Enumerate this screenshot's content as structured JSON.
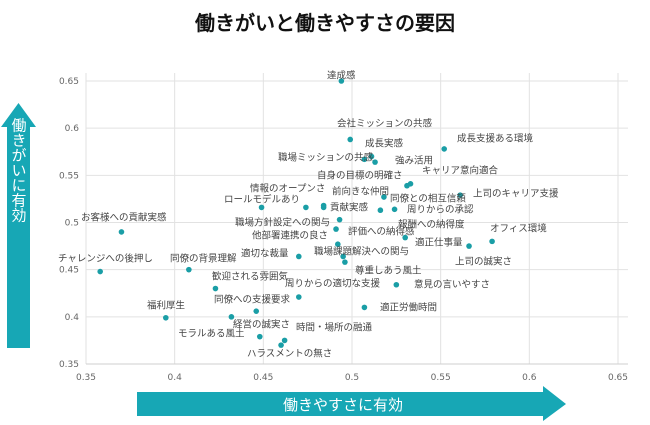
{
  "chart_data": {
    "type": "scatter",
    "title": "働きがいと働きやすさの要因",
    "xlabel": "働きやすさに有効",
    "ylabel": "働きがいに有効",
    "xlim": [
      0.35,
      0.65
    ],
    "ylim": [
      0.35,
      0.65
    ],
    "xticks": [
      "0.35",
      "0.4",
      "0.45",
      "0.5",
      "0.55",
      "0.6",
      "0.65"
    ],
    "yticks": [
      "0.35",
      "0.4",
      "0.45",
      "0.5",
      "0.55",
      "0.6",
      "0.65"
    ],
    "grid": true,
    "colors": {
      "point": "#1a9ea6",
      "arrow": "#17a7b5"
    },
    "points": [
      {
        "label": "達成感",
        "x": 0.494,
        "y": 0.65
      },
      {
        "label": "会社ミッションの共感",
        "x": 0.499,
        "y": 0.588
      },
      {
        "label": "成長実感",
        "x": 0.511,
        "y": 0.57
      },
      {
        "label": "職場ミッションの共感",
        "x": 0.507,
        "y": 0.567
      },
      {
        "label": "強み活用",
        "x": 0.513,
        "y": 0.564
      },
      {
        "label": "成長支援ある環境",
        "x": 0.552,
        "y": 0.578
      },
      {
        "label": "自身の目標の明確さ",
        "x": 0.531,
        "y": 0.539
      },
      {
        "label": "キャリア意向適合",
        "x": 0.533,
        "y": 0.541
      },
      {
        "label": "上司のキャリア支援",
        "x": 0.561,
        "y": 0.529
      },
      {
        "label": "同僚との相互信頼",
        "x": 0.518,
        "y": 0.527
      },
      {
        "label": "周りからの承認",
        "x": 0.524,
        "y": 0.514
      },
      {
        "label": "報酬への納得度",
        "x": 0.516,
        "y": 0.513
      },
      {
        "label": "前向きな仲間",
        "x": 0.484,
        "y": 0.518
      },
      {
        "label": "貢献実感",
        "x": 0.484,
        "y": 0.516
      },
      {
        "label": "情報のオープンさ",
        "x": 0.449,
        "y": 0.516
      },
      {
        "label": "ロールモデルあり",
        "x": 0.474,
        "y": 0.516
      },
      {
        "label": "職場方針設定への関与",
        "x": 0.493,
        "y": 0.503
      },
      {
        "label": "評価への納得感",
        "x": 0.491,
        "y": 0.493
      },
      {
        "label": "他部署連携の良さ",
        "x": 0.492,
        "y": 0.477
      },
      {
        "label": "職場課題解決への関与",
        "x": 0.495,
        "y": 0.464
      },
      {
        "label": "尊重しあう風土",
        "x": 0.496,
        "y": 0.458
      },
      {
        "label": "適正仕事量",
        "x": 0.53,
        "y": 0.484
      },
      {
        "label": "オフィス環境",
        "x": 0.579,
        "y": 0.48
      },
      {
        "label": "上司の誠実さ",
        "x": 0.566,
        "y": 0.475
      },
      {
        "label": "意見の言いやすさ",
        "x": 0.525,
        "y": 0.434
      },
      {
        "label": "適正労働時間",
        "x": 0.507,
        "y": 0.41
      },
      {
        "label": "適切な裁量",
        "x": 0.47,
        "y": 0.464
      },
      {
        "label": "周りからの適切な支援",
        "x": 0.47,
        "y": 0.421
      },
      {
        "label": "同僚への支援要求",
        "x": 0.446,
        "y": 0.406
      },
      {
        "label": "経営の誠実さ",
        "x": 0.448,
        "y": 0.379
      },
      {
        "label": "時間・場所の融通",
        "x": 0.462,
        "y": 0.375
      },
      {
        "label": "ハラスメントの無さ",
        "x": 0.46,
        "y": 0.37
      },
      {
        "label": "モラルある風土",
        "x": 0.432,
        "y": 0.4
      },
      {
        "label": "福利厚生",
        "x": 0.395,
        "y": 0.399
      },
      {
        "label": "歓迎される雰囲気",
        "x": 0.423,
        "y": 0.43
      },
      {
        "label": "同僚の背景理解",
        "x": 0.408,
        "y": 0.45
      },
      {
        "label": "チャレンジへの後押し",
        "x": 0.358,
        "y": 0.448
      },
      {
        "label": "お客様への貢献実感",
        "x": 0.37,
        "y": 0.49
      }
    ]
  }
}
